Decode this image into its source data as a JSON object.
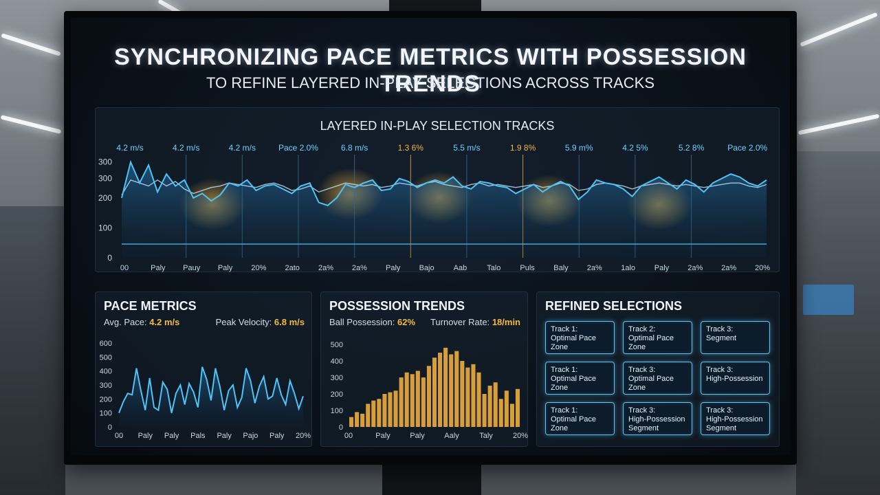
{
  "title": "SYNCHRONIZING PACE METRICS WITH POSSESSION TRENDS",
  "subtitle": "TO REFINE LAYERED IN-PLAY SELECTIONS ACROSS TRACKS",
  "main_chart": {
    "title": "LAYERED IN-PLAY SELECTION TRACKS",
    "top_labels": [
      {
        "text": "4.2 m/s",
        "color": "#6cd2ff"
      },
      {
        "text": "4.2 m/s",
        "color": "#6cd2ff"
      },
      {
        "text": "4.2 m/s",
        "color": "#6cd2ff"
      },
      {
        "text": "Pace 2.0%",
        "color": "#6cd2ff"
      },
      {
        "text": "6.8 m/s",
        "color": "#6cd2ff"
      },
      {
        "text": "1.3 6%",
        "color": "#f2b441"
      },
      {
        "text": "5.5 m/s",
        "color": "#6cd2ff"
      },
      {
        "text": "1.9 8%",
        "color": "#f2b441"
      },
      {
        "text": "5.9 m%",
        "color": "#6cd2ff"
      },
      {
        "text": "4.2 5%",
        "color": "#6cd2ff"
      },
      {
        "text": "5.2 8%",
        "color": "#6cd2ff"
      },
      {
        "text": "Pace 2.0%",
        "color": "#6cd2ff"
      }
    ],
    "y_ticks": [
      "0",
      "100",
      "200",
      "300",
      "300"
    ],
    "x_ticks": [
      "00",
      "Paly",
      "Pauy",
      "Paly",
      "20%",
      "2ato",
      "2a%",
      "2a%",
      "Paly",
      "Bajo",
      "Aab",
      "Talo",
      "Puls",
      "Baly",
      "2a%",
      "1alo",
      "Paly",
      "2a%",
      "2a%",
      "20%"
    ],
    "accent": "#4fc3f7",
    "highlight": "#f2b441"
  },
  "pace_metrics": {
    "title": "PACE METRICS",
    "avg_label": "Avg. Pace:",
    "avg_value": "4.2 m/s",
    "peak_label": "Peak Velocity:",
    "peak_value": "6.8 m/s",
    "y_ticks": [
      "0",
      "100",
      "200",
      "300",
      "400",
      "500",
      "600"
    ],
    "x_ticks": [
      "00",
      "Paly",
      "Paly",
      "Pals",
      "Paly",
      "Pajo",
      "Paly",
      "20%"
    ]
  },
  "possession_trends": {
    "title": "POSSESSION TRENDS",
    "ball_label": "Ball Possession:",
    "ball_value": "62%",
    "turnover_label": "Turnover Rate:",
    "turnover_value": "18/min",
    "y_ticks": [
      "0",
      "100",
      "200",
      "300",
      "400",
      "500"
    ],
    "x_ticks": [
      "00",
      "Paly",
      "Paly",
      "Aaly",
      "Taly",
      "20%"
    ]
  },
  "refined_selections": {
    "title": "REFINED SELECTIONS",
    "items": [
      {
        "line1": "Track 1:",
        "line2": "Optimal Pace Zone"
      },
      {
        "line1": "Track 2:",
        "line2": "Optimal Pace Zone"
      },
      {
        "line1": "Track 3:",
        "line2": "Segment"
      },
      {
        "line1": "Track 1:",
        "line2": "Optimal Pace Zone"
      },
      {
        "line1": "Track 3:",
        "line2": "Optimal Pace Zone"
      },
      {
        "line1": "Track 3:",
        "line2": "High-Possession"
      },
      {
        "line1": "Track 1:",
        "line2": "Optimal Pace Zone"
      },
      {
        "line1": "Track 3:",
        "line2": "High-Possession Segment"
      },
      {
        "line1": "Track 3:",
        "line2": "High-Possession Segment"
      }
    ]
  },
  "chart_data": [
    {
      "type": "line",
      "title": "LAYERED IN-PLAY SELECTION TRACKS",
      "ylim": [
        0,
        340
      ],
      "series": [
        {
          "values": [
            200,
            320,
            250,
            310,
            220,
            280,
            240,
            260,
            200,
            215,
            190,
            210,
            250,
            240,
            260,
            225,
            240,
            245,
            230,
            215,
            240,
            250,
            185,
            175,
            200,
            245,
            235,
            250,
            260,
            225,
            230,
            265,
            255,
            235,
            250,
            260,
            250,
            270,
            240,
            230,
            255,
            250,
            240,
            235,
            215,
            230,
            245,
            220,
            240,
            255,
            240,
            195,
            220,
            260,
            250,
            245,
            230,
            205,
            240,
            255,
            270,
            250,
            230,
            260,
            245,
            220,
            250,
            265,
            280,
            270,
            250,
            240,
            260
          ]
        },
        {
          "values": [
            210,
            260,
            250,
            240,
            260,
            240,
            255,
            230,
            215,
            225,
            235,
            240,
            250,
            245,
            240,
            235,
            245,
            250,
            240,
            225,
            230,
            240,
            220,
            230,
            240,
            250,
            245,
            240,
            245,
            235,
            240,
            250,
            245,
            240,
            250,
            255,
            245,
            240,
            235,
            245,
            250,
            240,
            245,
            240,
            235,
            240,
            245,
            235,
            240,
            250,
            245,
            225,
            230,
            245,
            250,
            245,
            240,
            230,
            240,
            245,
            250,
            245,
            240,
            245,
            240,
            235,
            240,
            245,
            250,
            250,
            240,
            235,
            245
          ]
        }
      ]
    },
    {
      "type": "line",
      "title": "PACE METRICS",
      "ylim": [
        0,
        600
      ],
      "values": [
        100,
        180,
        240,
        230,
        420,
        260,
        120,
        350,
        140,
        120,
        320,
        270,
        100,
        240,
        300,
        160,
        310,
        250,
        140,
        430,
        340,
        190,
        420,
        290,
        120,
        260,
        300,
        140,
        210,
        420,
        330,
        170,
        290,
        360,
        200,
        220,
        350,
        230,
        160,
        330,
        240,
        130,
        220
      ]
    },
    {
      "type": "bar",
      "title": "POSSESSION TRENDS",
      "ylim": [
        0,
        500
      ],
      "values": [
        60,
        90,
        80,
        140,
        160,
        170,
        200,
        210,
        220,
        300,
        330,
        320,
        340,
        300,
        370,
        420,
        450,
        480,
        440,
        460,
        400,
        360,
        380,
        330,
        200,
        250,
        270,
        170,
        220,
        140,
        230
      ]
    }
  ]
}
